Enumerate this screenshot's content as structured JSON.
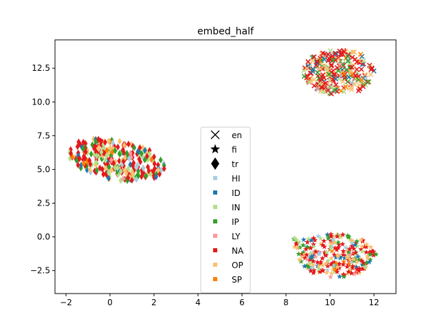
{
  "chart_data": {
    "type": "scatter",
    "title": "embed_half",
    "xlabel": "",
    "ylabel": "",
    "xlim": [
      -2.5,
      13.0
    ],
    "ylim": [
      -4.2,
      14.6
    ],
    "xticks": [
      -2,
      0,
      2,
      4,
      6,
      8,
      10,
      12
    ],
    "xtick_labels": [
      "−2",
      "0",
      "2",
      "4",
      "6",
      "8",
      "10",
      "12"
    ],
    "yticks": [
      -2.5,
      0.0,
      2.5,
      5.0,
      7.5,
      10.0,
      12.5
    ],
    "ytick_labels": [
      "−2.5",
      "0.0",
      "2.5",
      "5.0",
      "7.5",
      "10.0",
      "12.5"
    ],
    "grid": false,
    "legend_position": "center",
    "markers": [
      {
        "name": "en",
        "shape": "x",
        "cluster": {
          "cx": 10.4,
          "cy": 12.2,
          "rx": 1.6,
          "ry": 1.7
        }
      },
      {
        "name": "fi",
        "shape": "star",
        "cluster": {
          "cx": 10.2,
          "cy": -1.4,
          "rx": 1.9,
          "ry": 1.6
        }
      },
      {
        "name": "tr",
        "shape": "diamond",
        "cluster": {
          "cx": 0.3,
          "cy": 5.7,
          "rx": 2.2,
          "ry": 1.5
        }
      }
    ],
    "categories": [
      {
        "name": "HI",
        "color": "#a6cee3",
        "weight": 0.05
      },
      {
        "name": "ID",
        "color": "#1f78b4",
        "weight": 0.06
      },
      {
        "name": "IN",
        "color": "#b2df8a",
        "weight": 0.12
      },
      {
        "name": "IP",
        "color": "#33a02c",
        "weight": 0.12
      },
      {
        "name": "LY",
        "color": "#fb9a99",
        "weight": 0.03
      },
      {
        "name": "NA",
        "color": "#e31a1c",
        "weight": 0.42
      },
      {
        "name": "OP",
        "color": "#fdbf6f",
        "weight": 0.17
      },
      {
        "name": "SP",
        "color": "#ff7f00",
        "weight": 0.03
      }
    ]
  }
}
